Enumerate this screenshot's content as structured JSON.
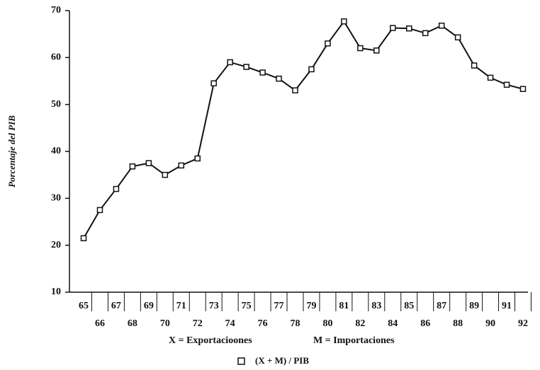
{
  "chart_data": {
    "type": "line",
    "y_label": "Porcentaje del PIB",
    "categories": [
      "65",
      "66",
      "67",
      "68",
      "69",
      "70",
      "71",
      "72",
      "73",
      "74",
      "75",
      "76",
      "77",
      "78",
      "79",
      "80",
      "81",
      "82",
      "83",
      "84",
      "85",
      "86",
      "87",
      "88",
      "89",
      "90",
      "91",
      "92"
    ],
    "series": [
      {
        "name": "(X + M) / PIB",
        "color": "#111111",
        "values": [
          21.5,
          27.5,
          32,
          36.8,
          37.5,
          35,
          37,
          38.5,
          54.5,
          59,
          58,
          56.8,
          55.5,
          53,
          57.5,
          63,
          67.7,
          62,
          61.5,
          66.3,
          66.2,
          65.2,
          66.8,
          64.3,
          58.3,
          55.7,
          54.2,
          53.3
        ]
      }
    ],
    "notes": [
      "X = Exportacioones",
      "M = Importaciones"
    ],
    "ylim": [
      10,
      70
    ],
    "yticks": [
      10,
      20,
      30,
      40,
      50,
      60,
      70
    ]
  }
}
